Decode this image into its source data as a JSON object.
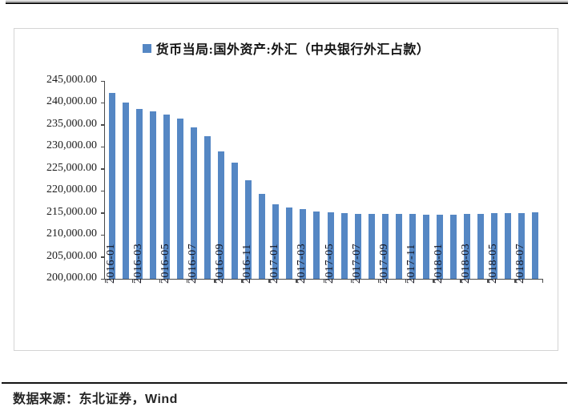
{
  "page": {
    "source_note": "数据来源：东北证券，Wind"
  },
  "colors": {
    "bar_fill": "#5587C4",
    "axis": "#4a4a4a",
    "chart_border": "#d4d4d4",
    "rule": "#141414",
    "text": "#1a1a1a"
  },
  "chart_data": {
    "type": "bar",
    "title": "",
    "legend_label": "货币当局:国外资产:外汇（中央银行外汇占款）",
    "legend_position": "top-center",
    "grid": false,
    "xlabel": "",
    "ylabel": "",
    "ylim": [
      200000,
      245000
    ],
    "ytick_step": 5000,
    "ytick_labels": [
      "245,000.00",
      "240,000.00",
      "235,000.00",
      "230,000.00",
      "225,000.00",
      "220,000.00",
      "215,000.00",
      "210,000.00",
      "205,000.00",
      "200,000.00"
    ],
    "x": [
      "2016-01",
      "2016-02",
      "2016-03",
      "2016-04",
      "2016-05",
      "2016-06",
      "2016-07",
      "2016-08",
      "2016-09",
      "2016-10",
      "2016-11",
      "2016-12",
      "2017-01",
      "2017-02",
      "2017-03",
      "2017-04",
      "2017-05",
      "2017-06",
      "2017-07",
      "2017-08",
      "2017-09",
      "2017-10",
      "2017-11",
      "2017-12",
      "2018-01",
      "2018-02",
      "2018-03",
      "2018-04",
      "2018-05",
      "2018-06",
      "2018-07",
      "2018-08"
    ],
    "x_label_every": 2,
    "series": [
      {
        "name": "货币当局:国外资产:外汇（中央银行外汇占款）",
        "color": "#5587C4",
        "values": [
          242300,
          240000,
          238600,
          238100,
          237400,
          236400,
          234500,
          232500,
          229000,
          226400,
          222500,
          219300,
          217000,
          216300,
          215800,
          215400,
          215100,
          214900,
          214800,
          214800,
          214800,
          214700,
          214800,
          214500,
          214600,
          214600,
          214700,
          214800,
          214900,
          214900,
          215000,
          215100
        ]
      }
    ]
  }
}
